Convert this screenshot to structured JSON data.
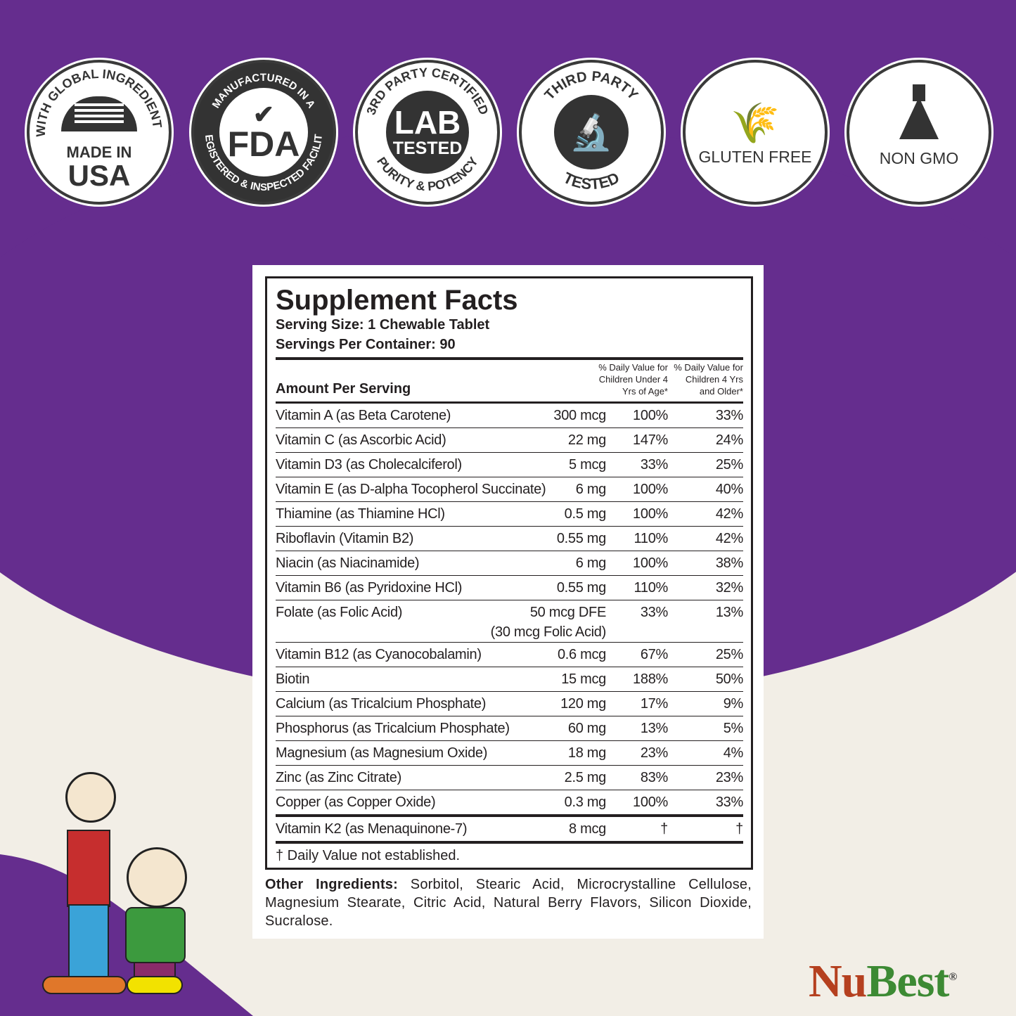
{
  "badges": [
    {
      "id": "made-in-usa",
      "arc": "WITH GLOBAL INGREDIENTS",
      "line1": "MADE IN",
      "line2": "USA",
      "icon": "us-flag-icon"
    },
    {
      "id": "fda",
      "arc_top": "MANUFACTURED IN A",
      "arc_bottom": "REGISTERED & INSPECTED FACILITY",
      "main": "FDA",
      "icon": "checkmark-icon"
    },
    {
      "id": "lab-tested",
      "arc_top": "3RD PARTY CERTIFIED",
      "arc_bottom": "PURITY & POTENCY",
      "line1": "LAB",
      "line2": "TESTED"
    },
    {
      "id": "third-party",
      "arc_top": "THIRD PARTY",
      "arc_bottom": "TESTED",
      "icon": "microscope-icon"
    },
    {
      "id": "gluten-free",
      "label": "GLUTEN FREE",
      "icon": "wheat-icon"
    },
    {
      "id": "non-gmo",
      "label": "NON GMO",
      "icon": "flask-icon"
    }
  ],
  "facts": {
    "title": "Supplement Facts",
    "serving_size": "Serving Size: 1 Chewable Tablet",
    "servings_per_container": "Servings Per Container: 90",
    "amount_per_serving": "Amount Per Serving",
    "dv_under4": "% Daily Value for Children Under 4 Yrs of Age*",
    "dv_4plus": "% Daily Value for Children 4 Yrs and Older*",
    "rows": [
      {
        "name": "Vitamin A (as Beta Carotene)",
        "amount": "300 mcg",
        "dv1": "100%",
        "dv2": "33%"
      },
      {
        "name": "Vitamin C (as Ascorbic Acid)",
        "amount": "22 mg",
        "dv1": "147%",
        "dv2": "24%"
      },
      {
        "name": "Vitamin D3 (as Cholecalciferol)",
        "amount": "5 mcg",
        "dv1": "33%",
        "dv2": "25%"
      },
      {
        "name": "Vitamin E (as D-alpha Tocopherol Succinate)",
        "amount": "6 mg",
        "dv1": "100%",
        "dv2": "40%"
      },
      {
        "name": "Thiamine (as Thiamine HCl)",
        "amount": "0.5 mg",
        "dv1": "100%",
        "dv2": "42%"
      },
      {
        "name": "Riboflavin (Vitamin B2)",
        "amount": "0.55 mg",
        "dv1": "110%",
        "dv2": "42%"
      },
      {
        "name": "Niacin (as Niacinamide)",
        "amount": "6 mg",
        "dv1": "100%",
        "dv2": "38%"
      },
      {
        "name": "Vitamin B6 (as Pyridoxine HCl)",
        "amount": "0.55 mg",
        "dv1": "110%",
        "dv2": "32%"
      },
      {
        "name": "Folate (as Folic Acid)",
        "amount": "50 mcg DFE",
        "amount2": "(30 mcg Folic Acid)",
        "dv1": "33%",
        "dv2": "13%"
      },
      {
        "name": "Vitamin B12 (as Cyanocobalamin)",
        "amount": "0.6 mcg",
        "dv1": "67%",
        "dv2": "25%"
      },
      {
        "name": "Biotin",
        "amount": "15 mcg",
        "dv1": "188%",
        "dv2": "50%"
      },
      {
        "name": "Calcium (as Tricalcium Phosphate)",
        "amount": "120 mg",
        "dv1": "17%",
        "dv2": "9%"
      },
      {
        "name": "Phosphorus (as Tricalcium Phosphate)",
        "amount": "60 mg",
        "dv1": "13%",
        "dv2": "5%"
      },
      {
        "name": "Magnesium (as Magnesium Oxide)",
        "amount": "18 mg",
        "dv1": "23%",
        "dv2": "4%"
      },
      {
        "name": "Zinc (as Zinc Citrate)",
        "amount": "2.5 mg",
        "dv1": "83%",
        "dv2": "23%"
      },
      {
        "name": "Copper (as Copper Oxide)",
        "amount": "0.3 mg",
        "dv1": "100%",
        "dv2": "33%"
      }
    ],
    "k2": {
      "name": "Vitamin K2 (as Menaquinone-7)",
      "amount": "8 mcg",
      "dv1": "†",
      "dv2": "†"
    },
    "footnote": "† Daily Value not established.",
    "other_label": "Other Ingredients:",
    "other_text": " Sorbitol, Stearic Acid, Microcrystalline Cellulose, Magnesium Stearate, Citric Acid, Natural Berry Flavors, Silicon Dioxide, Sucralose."
  },
  "brand": {
    "part1": "Nu",
    "part2": "Best",
    "reg": "®",
    "color1": "#b5401f",
    "color2": "#3d8a34"
  },
  "colors": {
    "purple": "#652d8e",
    "cream": "#f2eee6"
  }
}
